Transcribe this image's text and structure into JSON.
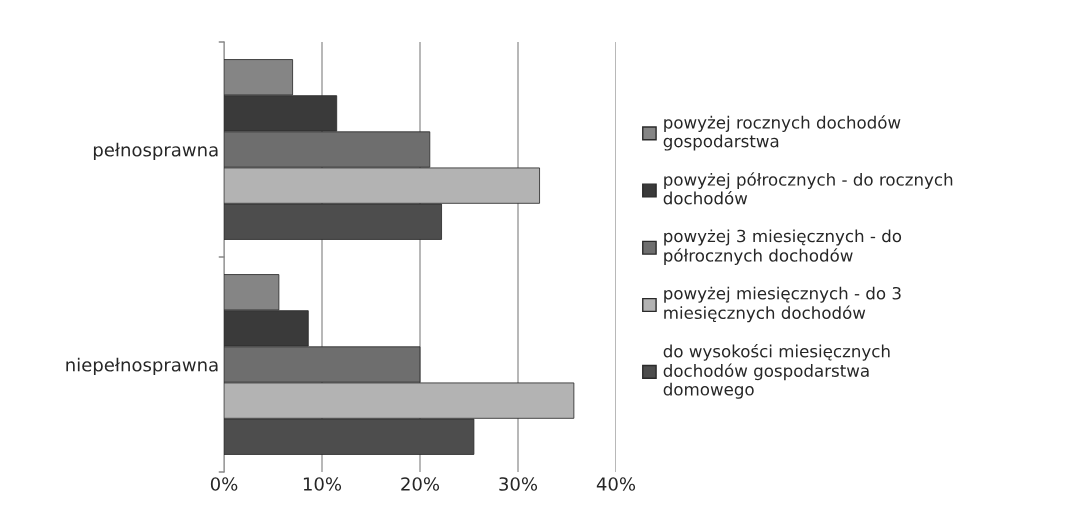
{
  "chart_data": {
    "type": "bar",
    "orientation": "horizontal",
    "categories": [
      "pełnosprawna",
      "niepełnosprawna"
    ],
    "series": [
      {
        "name": "do wysokości miesięcznych\ndochodów gospodarstwa\ndomowego",
        "color": "#4d4d4d",
        "values": [
          22.2,
          25.5
        ]
      },
      {
        "name": "powyżej miesięcznych - do 3\nmiesięcznych dochodów",
        "color": "#b3b3b3",
        "values": [
          32.2,
          35.7
        ]
      },
      {
        "name": "powyżej 3 miesięcznych - do\npółrocznych dochodów",
        "color": "#6e6e6e",
        "values": [
          21.0,
          20.0
        ]
      },
      {
        "name": "powyżej półrocznych - do rocznych\ndochodów",
        "color": "#3a3a3a",
        "values": [
          11.5,
          8.6
        ]
      },
      {
        "name": "powyżej rocznych dochodów\ngospodarstwa",
        "color": "#858585",
        "values": [
          7.0,
          5.6
        ]
      }
    ],
    "xlim": [
      0,
      40
    ],
    "xticks": [
      {
        "value": 0,
        "label": "0%"
      },
      {
        "value": 10,
        "label": "10%"
      },
      {
        "value": 20,
        "label": "20%"
      },
      {
        "value": 30,
        "label": "30%"
      },
      {
        "value": 40,
        "label": "40%"
      }
    ],
    "grid": "x",
    "legend": "right"
  }
}
